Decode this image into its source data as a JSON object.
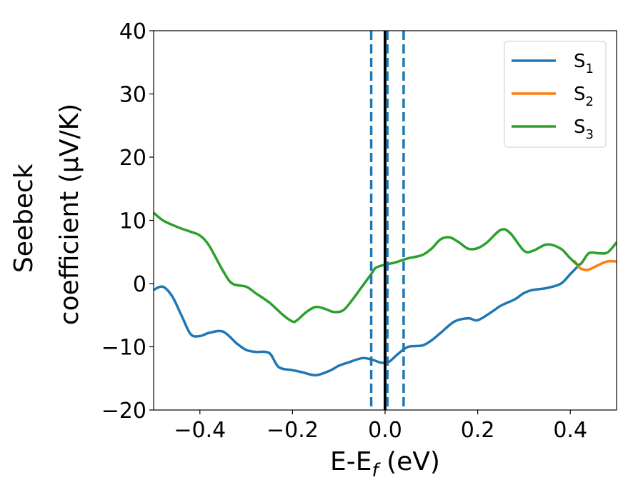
{
  "chart_data": {
    "type": "line",
    "title": "",
    "xlabel": {
      "main": "E-E",
      "sub": "f",
      "tail": " (eV)"
    },
    "ylabel": {
      "line1": "Seebeck",
      "line2": "coefficient  (μV/K)"
    },
    "xlim": [
      -0.5,
      0.5
    ],
    "ylim": [
      -20,
      40
    ],
    "xticks": [
      -0.4,
      -0.2,
      0.0,
      0.2,
      0.4
    ],
    "xtick_labels": [
      "−0.4",
      "−0.2",
      "0.0",
      "0.2",
      "0.4"
    ],
    "yticks": [
      -20,
      -10,
      0,
      10,
      20,
      30,
      40
    ],
    "ytick_labels": [
      "−20",
      "−10",
      "0",
      "10",
      "20",
      "30",
      "40"
    ],
    "grid": false,
    "legend_position": "top-right",
    "vertical_lines": [
      {
        "x": -0.03,
        "style": "dashed",
        "color": "#1f77b4"
      },
      {
        "x": 0.0,
        "style": "solid",
        "color": "#000000"
      },
      {
        "x": 0.005,
        "style": "dashed",
        "color": "#1f77b4"
      },
      {
        "x": 0.04,
        "style": "dashed",
        "color": "#1f77b4"
      }
    ],
    "series": [
      {
        "name": {
          "main": "S",
          "sub": "1"
        },
        "color": "#1f77b4",
        "x": [
          -0.5,
          -0.48,
          -0.46,
          -0.44,
          -0.42,
          -0.4,
          -0.38,
          -0.35,
          -0.32,
          -0.3,
          -0.28,
          -0.25,
          -0.23,
          -0.2,
          -0.18,
          -0.15,
          -0.12,
          -0.1,
          -0.08,
          -0.05,
          -0.03,
          -0.01,
          0.0,
          0.01,
          0.03,
          0.05,
          0.08,
          0.1,
          0.12,
          0.15,
          0.18,
          0.2,
          0.23,
          0.25,
          0.28,
          0.3,
          0.32,
          0.35,
          0.38,
          0.4,
          0.42
        ],
        "values": [
          -1,
          -0.5,
          -2,
          -5,
          -8,
          -8.3,
          -7.8,
          -7.6,
          -9.5,
          -10.5,
          -10.8,
          -11,
          -13.2,
          -13.7,
          -14,
          -14.5,
          -13.8,
          -13,
          -12.5,
          -11.8,
          -12,
          -12.5,
          -12.5,
          -12.3,
          -11,
          -10,
          -9.8,
          -9,
          -7.8,
          -6,
          -5.5,
          -5.8,
          -4.5,
          -3.5,
          -2.5,
          -1.5,
          -1,
          -0.7,
          0,
          1.5,
          3
        ]
      },
      {
        "name": {
          "main": "S",
          "sub": "2"
        },
        "color": "#ff7f0e",
        "x": [
          0.41,
          0.42,
          0.43,
          0.44,
          0.46,
          0.48,
          0.5
        ],
        "values": [
          3.5,
          2.5,
          2.2,
          2.2,
          2.9,
          3.5,
          3.5
        ]
      },
      {
        "name": {
          "main": "S",
          "sub": "3"
        },
        "color": "#2ca02c",
        "x": [
          -0.5,
          -0.48,
          -0.46,
          -0.44,
          -0.42,
          -0.4,
          -0.38,
          -0.35,
          -0.33,
          -0.3,
          -0.28,
          -0.25,
          -0.22,
          -0.2,
          -0.19,
          -0.17,
          -0.15,
          -0.13,
          -0.11,
          -0.09,
          -0.07,
          -0.05,
          -0.03,
          -0.02,
          0.0,
          0.02,
          0.05,
          0.08,
          0.1,
          0.12,
          0.14,
          0.16,
          0.18,
          0.2,
          0.22,
          0.25,
          0.27,
          0.3,
          0.32,
          0.35,
          0.38,
          0.4,
          0.42,
          0.44,
          0.46,
          0.48,
          0.5
        ],
        "values": [
          11.2,
          10,
          9.3,
          8.7,
          8.2,
          7.6,
          6,
          2,
          0,
          -0.5,
          -1.5,
          -3,
          -5,
          -6,
          -5.8,
          -4.5,
          -3.7,
          -4,
          -4.5,
          -4.2,
          -2.5,
          -0.5,
          1.5,
          2.5,
          3,
          3.3,
          4,
          4.5,
          5.5,
          7,
          7.3,
          6.5,
          5.5,
          5.6,
          6.5,
          8.5,
          8,
          5.2,
          5.2,
          6.2,
          5.5,
          4,
          3,
          4.8,
          4.8,
          4.9,
          6.5
        ]
      }
    ]
  }
}
